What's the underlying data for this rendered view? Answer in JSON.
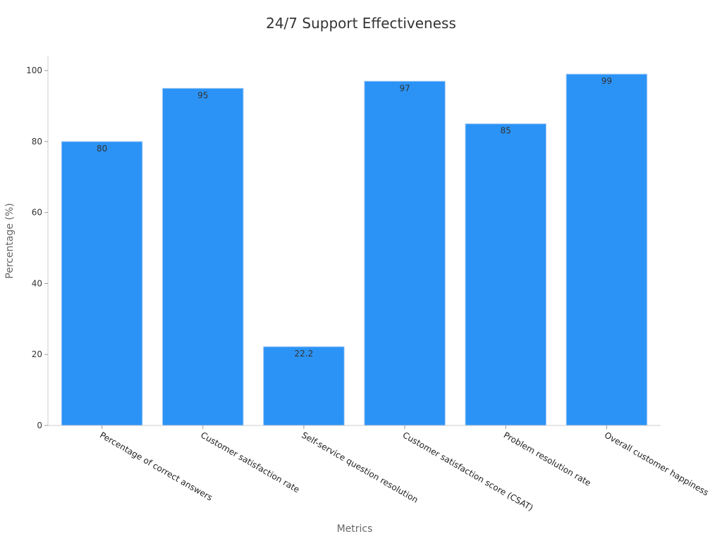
{
  "chart_data": {
    "type": "bar",
    "title": "24/7 Support Effectiveness",
    "xlabel": "Metrics",
    "ylabel": "Percentage (%)",
    "ylim": [
      0,
      104
    ],
    "yticks": [
      0,
      20,
      40,
      60,
      80,
      100
    ],
    "grid": false,
    "categories": [
      "Percentage of correct answers",
      "Customer satisfaction rate",
      "Self-service question resolution",
      "Customer satisfaction score (CSAT)",
      "Problem resolution rate",
      "Overall customer happiness"
    ],
    "values": [
      80,
      95,
      22.2,
      97,
      85,
      99
    ],
    "data_labels": [
      "80",
      "95",
      "22.2",
      "97",
      "85",
      "99"
    ],
    "bar_color": "#2b93f6",
    "bar_edge_color": "#a9cdf7"
  }
}
